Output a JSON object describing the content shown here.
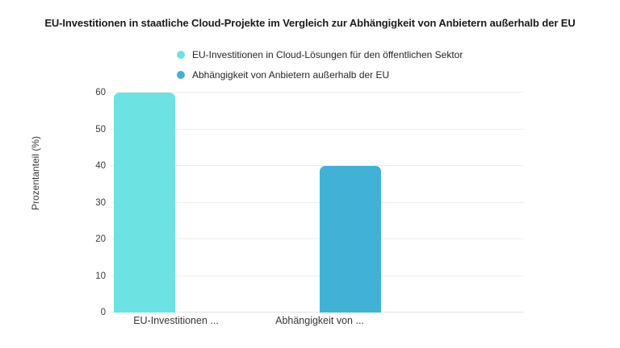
{
  "chart_data": {
    "type": "bar",
    "title": "EU-Investitionen in staatliche Cloud-Projekte im Vergleich zur Abhängigkeit von Anbietern außerhalb der EU",
    "ylabel": "Prozentanteil (%)",
    "xlabel": "",
    "categories": [
      "EU-Investitionen ...",
      "Abhängigkeit von ..."
    ],
    "values": [
      60,
      40
    ],
    "colors": [
      "#6ce2e2",
      "#41b2d5"
    ],
    "ylim": [
      0,
      60
    ],
    "yticks": [
      0,
      10,
      20,
      30,
      40,
      50,
      60
    ],
    "grid": true,
    "legend_position": "top",
    "background": "#ffffff"
  },
  "legend": {
    "items": [
      {
        "label": "EU-Investitionen in Cloud-Lösungen für den öffentlichen Sektor",
        "color": "#6ce2e2"
      },
      {
        "label": "Abhängigkeit von Anbietern außerhalb der EU",
        "color": "#41b2d5"
      }
    ]
  }
}
